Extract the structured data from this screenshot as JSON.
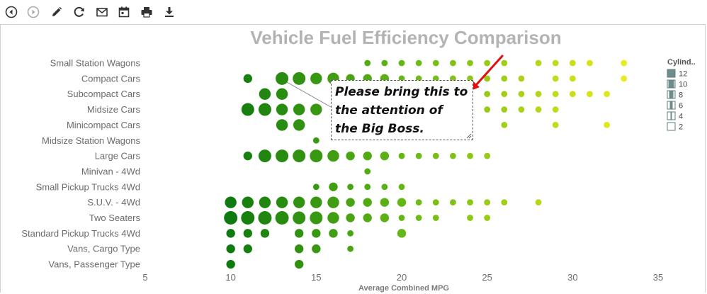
{
  "toolbar": {
    "buttons": [
      {
        "name": "back-icon"
      },
      {
        "name": "forward-icon"
      },
      {
        "name": "pencil-icon"
      },
      {
        "name": "refresh-icon"
      },
      {
        "name": "mail-icon"
      },
      {
        "name": "calendar-icon"
      },
      {
        "name": "print-icon"
      },
      {
        "name": "download-icon"
      }
    ]
  },
  "annotation": {
    "text": "Please bring this to the attention of the Big Boss.",
    "arrow_color": "#e01010"
  },
  "chart_data": {
    "type": "scatter",
    "title": "Vehicle Fuel Efficiency Comparison",
    "xlabel": "Average Combined MPG",
    "ylabel": "",
    "xlim": [
      5,
      35
    ],
    "x_ticks": [
      5,
      10,
      15,
      20,
      25,
      30,
      35
    ],
    "grid": false,
    "legend": {
      "title": "Cylind..",
      "placement": "right",
      "entries": [
        "12",
        "10",
        "8",
        "6",
        "4",
        "2"
      ]
    },
    "colors": {
      "low_mpg": "#0f7a0f",
      "mid_mpg": "#66b814",
      "high_mpg": "#e8ec1a"
    },
    "categories": [
      "Small Station Wagons",
      "Compact Cars",
      "Subcompact Cars",
      "Midsize Cars",
      "Minicompact Cars",
      "Midsize Station Wagons",
      "Large Cars",
      "Minivan - 4Wd",
      "Small Pickup Trucks 4Wd",
      "S.U.V. - 4Wd",
      "Two Seaters",
      "Standard Pickup Trucks 4Wd",
      "Vans, Cargo Type",
      "Vans, Passenger Type"
    ],
    "points": [
      {
        "category": "Small Station Wagons",
        "values": [
          [
            18,
            4
          ],
          [
            19,
            4
          ],
          [
            20,
            4
          ],
          [
            21,
            4
          ],
          [
            22,
            4
          ],
          [
            23,
            4
          ],
          [
            24,
            4
          ],
          [
            25,
            4
          ],
          [
            26,
            4
          ],
          [
            28,
            4
          ],
          [
            29,
            4
          ],
          [
            30,
            4
          ],
          [
            31,
            4
          ],
          [
            33,
            4
          ]
        ]
      },
      {
        "category": "Compact Cars",
        "values": [
          [
            11,
            6
          ],
          [
            13,
            10
          ],
          [
            14,
            10
          ],
          [
            15,
            8
          ],
          [
            16,
            8
          ],
          [
            17,
            6
          ],
          [
            18,
            6
          ],
          [
            19,
            6
          ],
          [
            20,
            4
          ],
          [
            21,
            4
          ],
          [
            22,
            4
          ],
          [
            23,
            4
          ],
          [
            24,
            4
          ],
          [
            25,
            4
          ],
          [
            26,
            4
          ],
          [
            27,
            4
          ],
          [
            29,
            4
          ],
          [
            30,
            4
          ],
          [
            33,
            4
          ]
        ]
      },
      {
        "category": "Subcompact Cars",
        "values": [
          [
            12,
            8
          ],
          [
            13,
            8
          ],
          [
            19,
            4
          ],
          [
            20,
            4
          ],
          [
            21,
            4
          ],
          [
            22,
            4
          ],
          [
            23,
            4
          ],
          [
            24,
            4
          ],
          [
            25,
            4
          ],
          [
            26,
            4
          ],
          [
            27,
            4
          ],
          [
            28,
            4
          ],
          [
            29,
            4
          ],
          [
            30,
            4
          ],
          [
            31,
            4
          ],
          [
            32,
            4
          ]
        ]
      },
      {
        "category": "Midsize Cars",
        "values": [
          [
            11,
            10
          ],
          [
            12,
            10
          ],
          [
            13,
            8
          ],
          [
            14,
            8
          ],
          [
            15,
            8
          ],
          [
            22,
            4
          ],
          [
            23,
            4
          ],
          [
            24,
            4
          ],
          [
            25,
            4
          ],
          [
            26,
            4
          ],
          [
            27,
            4
          ],
          [
            28,
            4
          ],
          [
            29,
            4
          ]
        ]
      },
      {
        "category": "Minicompact Cars",
        "values": [
          [
            13,
            8
          ],
          [
            14,
            8
          ],
          [
            26,
            4
          ],
          [
            29,
            4
          ],
          [
            32,
            4
          ]
        ]
      },
      {
        "category": "Midsize Station Wagons",
        "values": [
          [
            15,
            4
          ]
        ]
      },
      {
        "category": "Large Cars",
        "values": [
          [
            11,
            6
          ],
          [
            12,
            10
          ],
          [
            13,
            10
          ],
          [
            14,
            10
          ],
          [
            15,
            10
          ],
          [
            16,
            8
          ],
          [
            17,
            6
          ],
          [
            18,
            6
          ],
          [
            19,
            6
          ],
          [
            20,
            4
          ],
          [
            21,
            4
          ],
          [
            22,
            4
          ],
          [
            23,
            4
          ],
          [
            24,
            4
          ],
          [
            25,
            4
          ]
        ]
      },
      {
        "category": "Minivan - 4Wd",
        "values": [
          [
            18,
            4
          ]
        ]
      },
      {
        "category": "Small Pickup Trucks 4Wd",
        "values": [
          [
            15,
            4
          ],
          [
            16,
            6
          ],
          [
            17,
            4
          ],
          [
            18,
            4
          ],
          [
            19,
            4
          ],
          [
            20,
            4
          ]
        ]
      },
      {
        "category": "S.U.V. - 4Wd",
        "values": [
          [
            10,
            8
          ],
          [
            11,
            8
          ],
          [
            12,
            8
          ],
          [
            13,
            8
          ],
          [
            14,
            8
          ],
          [
            15,
            8
          ],
          [
            16,
            8
          ],
          [
            17,
            6
          ],
          [
            18,
            6
          ],
          [
            19,
            6
          ],
          [
            20,
            6
          ],
          [
            21,
            4
          ],
          [
            22,
            4
          ],
          [
            23,
            4
          ],
          [
            24,
            4
          ],
          [
            25,
            4
          ],
          [
            26,
            4
          ],
          [
            28,
            4
          ]
        ]
      },
      {
        "category": "Two Seaters",
        "values": [
          [
            10,
            12
          ],
          [
            11,
            12
          ],
          [
            12,
            12
          ],
          [
            13,
            12
          ],
          [
            14,
            10
          ],
          [
            15,
            10
          ],
          [
            16,
            8
          ],
          [
            17,
            6
          ],
          [
            18,
            6
          ],
          [
            19,
            6
          ],
          [
            20,
            4
          ],
          [
            21,
            4
          ],
          [
            22,
            4
          ],
          [
            24,
            4
          ],
          [
            25,
            4
          ]
        ]
      },
      {
        "category": "Standard Pickup Trucks 4Wd",
        "values": [
          [
            10,
            6
          ],
          [
            11,
            6
          ],
          [
            12,
            6
          ],
          [
            14,
            6
          ],
          [
            15,
            6
          ],
          [
            16,
            6
          ],
          [
            17,
            4
          ],
          [
            20,
            6
          ]
        ]
      },
      {
        "category": "Vans, Cargo Type",
        "values": [
          [
            10,
            6
          ],
          [
            11,
            6
          ],
          [
            14,
            6
          ],
          [
            15,
            6
          ],
          [
            17,
            4
          ]
        ]
      },
      {
        "category": "Vans, Passenger Type",
        "values": [
          [
            10,
            6
          ],
          [
            14,
            6
          ]
        ]
      }
    ]
  }
}
